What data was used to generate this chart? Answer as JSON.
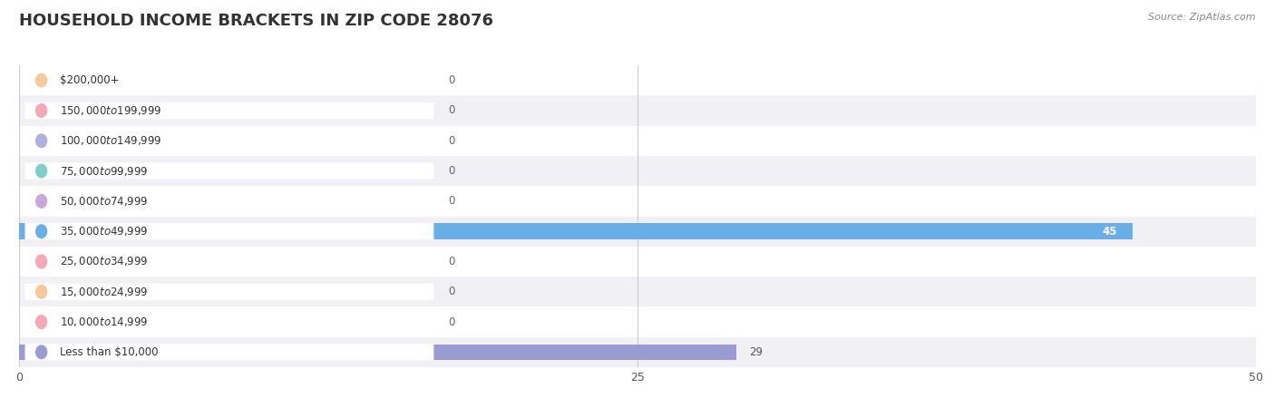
{
  "title": "HOUSEHOLD INCOME BRACKETS IN ZIP CODE 28076",
  "source": "Source: ZipAtlas.com",
  "categories": [
    "Less than $10,000",
    "$10,000 to $14,999",
    "$15,000 to $24,999",
    "$25,000 to $34,999",
    "$35,000 to $49,999",
    "$50,000 to $74,999",
    "$75,000 to $99,999",
    "$100,000 to $149,999",
    "$150,000 to $199,999",
    "$200,000+"
  ],
  "values": [
    29,
    0,
    0,
    0,
    45,
    0,
    0,
    0,
    0,
    0
  ],
  "bar_colors": [
    "#9b9bd4",
    "#f4a7b5",
    "#f5c99a",
    "#f4a7b5",
    "#6aaee8",
    "#c8a8dc",
    "#80cec8",
    "#b0b0e0",
    "#f4a7b5",
    "#f5c99a"
  ],
  "row_bg_colors": [
    "#f0f0f5",
    "#ffffff"
  ],
  "xlim": [
    0,
    50
  ],
  "xticks": [
    0,
    25,
    50
  ],
  "background_color": "#ffffff",
  "grid_color": "#cccccc"
}
